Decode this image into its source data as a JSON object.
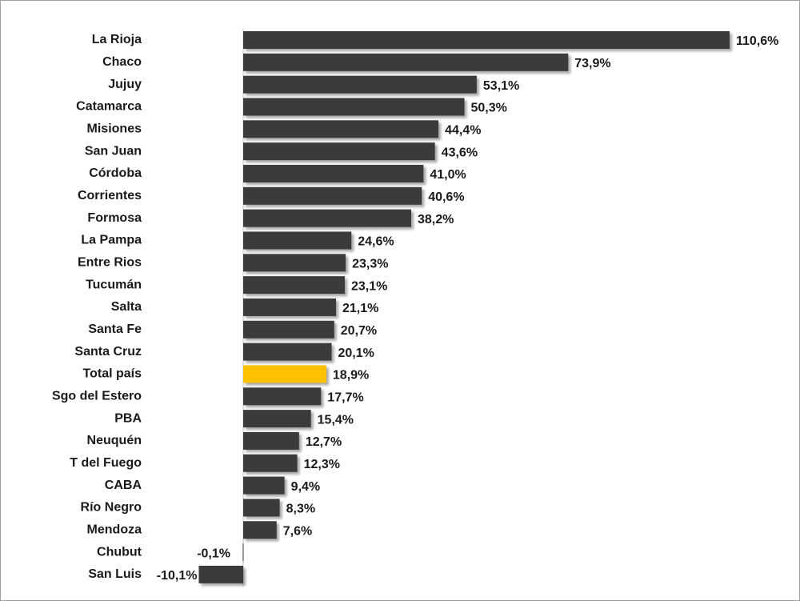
{
  "chart_data": {
    "type": "bar",
    "orientation": "horizontal",
    "categories": [
      "La Rioja",
      "Chaco",
      "Jujuy",
      "Catamarca",
      "Misiones",
      "San Juan",
      "Córdoba",
      "Corrientes",
      "Formosa",
      "La Pampa",
      "Entre Rios",
      "Tucumán",
      "Salta",
      "Santa Fe",
      "Santa Cruz",
      "Total país",
      "Sgo del Estero",
      "PBA",
      "Neuquén",
      "T del Fuego",
      "CABA",
      "Río Negro",
      "Mendoza",
      "Chubut",
      "San Luis"
    ],
    "values": [
      110.6,
      73.9,
      53.1,
      50.3,
      44.4,
      43.6,
      41.0,
      40.6,
      38.2,
      24.6,
      23.3,
      23.1,
      21.1,
      20.7,
      20.1,
      18.9,
      17.7,
      15.4,
      12.7,
      12.3,
      9.4,
      8.3,
      7.6,
      -0.1,
      -10.1
    ],
    "value_labels": [
      "110,6%",
      "73,9%",
      "53,1%",
      "50,3%",
      "44,4%",
      "43,6%",
      "41,0%",
      "40,6%",
      "38,2%",
      "24,6%",
      "23,3%",
      "23,1%",
      "21,1%",
      "20,7%",
      "20,1%",
      "18,9%",
      "17,7%",
      "15,4%",
      "12,7%",
      "12,3%",
      "9,4%",
      "8,3%",
      "7,6%",
      "-0,1%",
      "-10,1%"
    ],
    "colors": [
      "#3b3b3b",
      "#3b3b3b",
      "#3b3b3b",
      "#3b3b3b",
      "#3b3b3b",
      "#3b3b3b",
      "#3b3b3b",
      "#3b3b3b",
      "#3b3b3b",
      "#3b3b3b",
      "#3b3b3b",
      "#3b3b3b",
      "#3b3b3b",
      "#3b3b3b",
      "#3b3b3b",
      "#ffc000",
      "#3b3b3b",
      "#3b3b3b",
      "#3b3b3b",
      "#3b3b3b",
      "#3b3b3b",
      "#3b3b3b",
      "#3b3b3b",
      "#3b3b3b",
      "#3b3b3b"
    ]
  }
}
